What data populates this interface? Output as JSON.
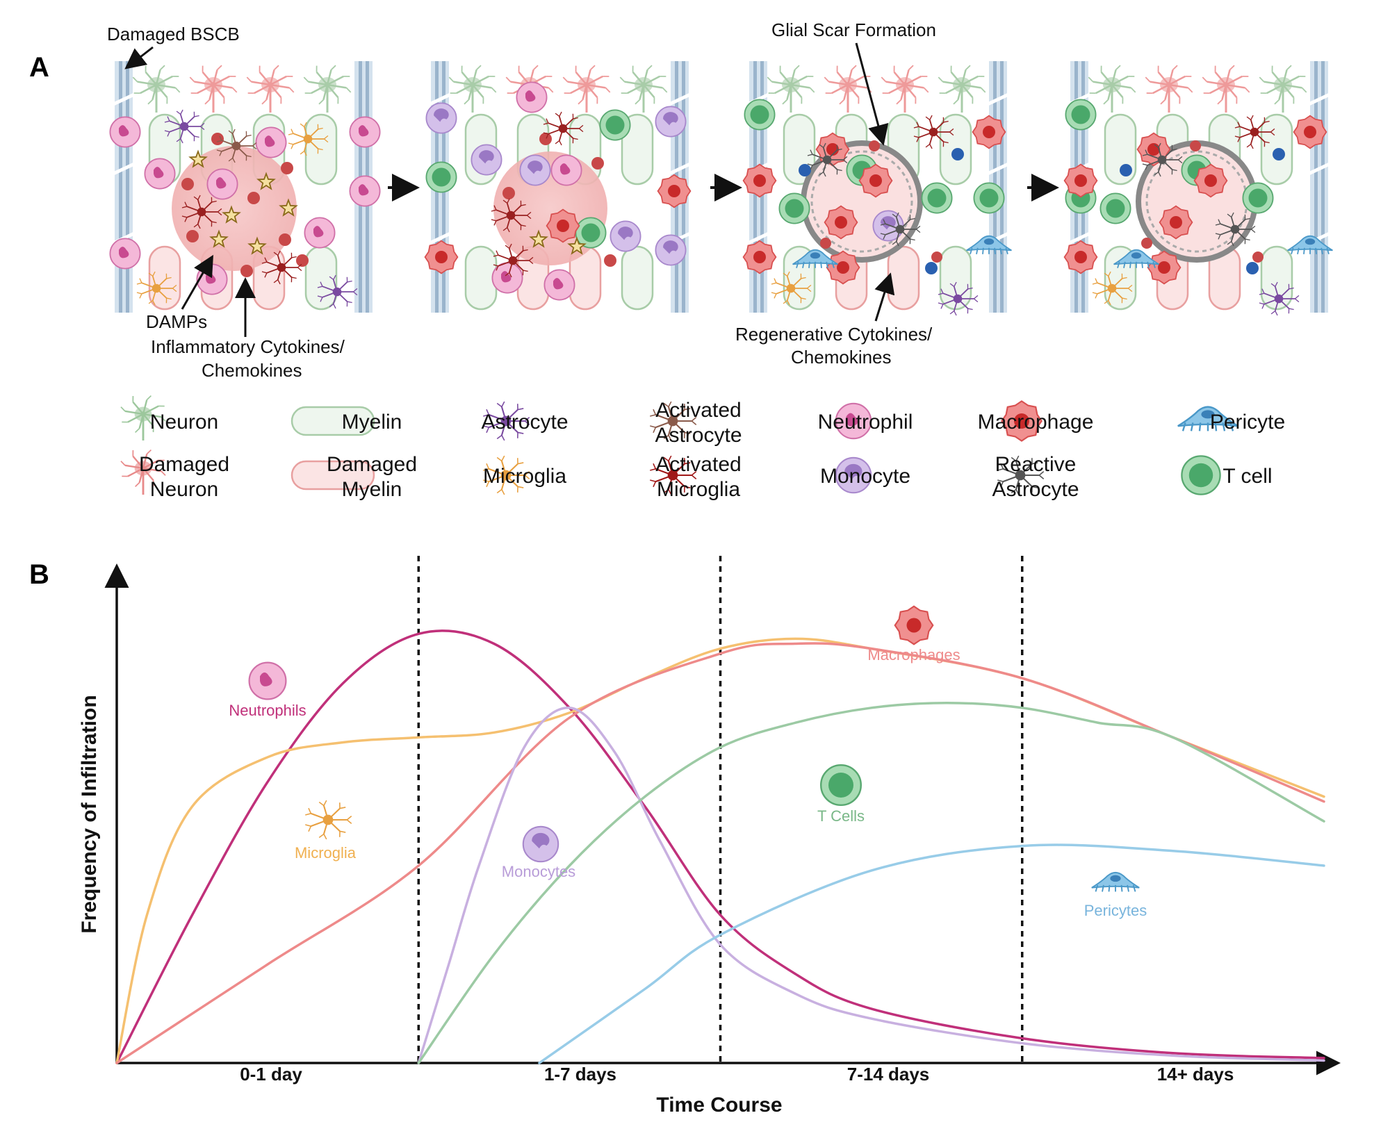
{
  "panel_a": {
    "letter": "A",
    "annotations": {
      "damaged_bscb": "Damaged BSCB",
      "glial_scar": "Glial Scar Formation",
      "damps": "DAMPs",
      "inflammatory_line1": "Inflammatory Cytokines/",
      "inflammatory_line2": "Chemokines",
      "regenerative_line1": "Regenerative Cytokines/",
      "regenerative_line2": "Chemokines"
    },
    "legend": [
      {
        "key": "neuron",
        "line1": "Neuron",
        "line2": "",
        "color": "#9cc79c"
      },
      {
        "key": "myelin",
        "line1": "Myelin",
        "line2": "",
        "color": "#9cc79c"
      },
      {
        "key": "astrocyte",
        "line1": "Astrocyte",
        "line2": "",
        "color": "#7a4aa0"
      },
      {
        "key": "activated-astrocyte",
        "line1": "Activated",
        "line2": "Astrocyte",
        "color": "#8a5a4a"
      },
      {
        "key": "neutrophil",
        "line1": "Neutrophil",
        "line2": "",
        "color": "#d060a0"
      },
      {
        "key": "macrophage",
        "line1": "Macrophage",
        "line2": "",
        "color": "#e04040"
      },
      {
        "key": "pericyte",
        "line1": "Pericyte",
        "line2": "",
        "color": "#5aaad8"
      },
      {
        "key": "damaged-neuron",
        "line1": "Damaged",
        "line2": "Neuron",
        "color": "#e88a8a"
      },
      {
        "key": "damaged-myelin",
        "line1": "Damaged",
        "line2": "Myelin",
        "color": "#e88a8a"
      },
      {
        "key": "microglia",
        "line1": "Microglia",
        "line2": "",
        "color": "#e8a040"
      },
      {
        "key": "activated-microglia",
        "line1": "Activated",
        "line2": "Microglia",
        "color": "#a01818"
      },
      {
        "key": "monocyte",
        "line1": "Monocyte",
        "line2": "",
        "color": "#a080cc"
      },
      {
        "key": "reactive-astrocyte",
        "line1": "Reactive",
        "line2": "Astrocyte",
        "color": "#555555"
      },
      {
        "key": "t-cell",
        "line1": "T cell",
        "line2": "",
        "color": "#4aa86a"
      }
    ]
  },
  "chart_data": {
    "type": "line",
    "letter": "B",
    "xlabel": "Time Course",
    "ylabel": "Frequency of Infiltration",
    "categories": [
      "0-1 day",
      "1-7 days",
      "7-14 days",
      "14+ days"
    ],
    "xlim": [
      0,
      4
    ],
    "ylim": [
      0,
      1
    ],
    "series": [
      {
        "name": "Neutrophils",
        "color": "#c0307a",
        "icon": "neutrophil",
        "points": [
          [
            0,
            0
          ],
          [
            0.25,
            0.3
          ],
          [
            0.5,
            0.57
          ],
          [
            0.75,
            0.77
          ],
          [
            1,
            0.87
          ],
          [
            1.25,
            0.85
          ],
          [
            1.5,
            0.72
          ],
          [
            1.75,
            0.52
          ],
          [
            2,
            0.3
          ],
          [
            2.25,
            0.18
          ],
          [
            2.5,
            0.11
          ],
          [
            3,
            0.05
          ],
          [
            3.5,
            0.02
          ],
          [
            4,
            0.01
          ]
        ]
      },
      {
        "name": "Microglia",
        "color": "#f5c070",
        "icon": "microglia",
        "points": [
          [
            0,
            0
          ],
          [
            0.1,
            0.3
          ],
          [
            0.25,
            0.52
          ],
          [
            0.5,
            0.62
          ],
          [
            0.75,
            0.65
          ],
          [
            1,
            0.66
          ],
          [
            1.25,
            0.67
          ],
          [
            1.5,
            0.71
          ],
          [
            1.75,
            0.78
          ],
          [
            2,
            0.84
          ],
          [
            2.25,
            0.86
          ],
          [
            2.5,
            0.84
          ],
          [
            3,
            0.78
          ],
          [
            3.5,
            0.66
          ],
          [
            4,
            0.54
          ]
        ]
      },
      {
        "name": "Macrophages",
        "color": "#ee8a8a",
        "icon": "macrophage",
        "points": [
          [
            0,
            0
          ],
          [
            0.5,
            0.2
          ],
          [
            1,
            0.4
          ],
          [
            1.5,
            0.7
          ],
          [
            2,
            0.83
          ],
          [
            2.25,
            0.85
          ],
          [
            2.5,
            0.84
          ],
          [
            3,
            0.78
          ],
          [
            3.5,
            0.66
          ],
          [
            4,
            0.53
          ]
        ]
      },
      {
        "name": "Monocytes",
        "color": "#c8b0e0",
        "icon": "monocyte",
        "points": [
          [
            1,
            0
          ],
          [
            1.1,
            0.2
          ],
          [
            1.2,
            0.4
          ],
          [
            1.35,
            0.64
          ],
          [
            1.5,
            0.72
          ],
          [
            1.65,
            0.63
          ],
          [
            1.8,
            0.45
          ],
          [
            2,
            0.24
          ],
          [
            2.25,
            0.14
          ],
          [
            2.5,
            0.09
          ],
          [
            3,
            0.04
          ],
          [
            3.5,
            0.015
          ],
          [
            4,
            0.005
          ]
        ]
      },
      {
        "name": "T Cells",
        "color": "#9ccaa4",
        "icon": "t-cell",
        "points": [
          [
            1,
            0
          ],
          [
            1.25,
            0.22
          ],
          [
            1.5,
            0.4
          ],
          [
            1.75,
            0.54
          ],
          [
            2,
            0.64
          ],
          [
            2.25,
            0.69
          ],
          [
            2.5,
            0.72
          ],
          [
            2.75,
            0.73
          ],
          [
            3,
            0.72
          ],
          [
            3.25,
            0.69
          ],
          [
            3.5,
            0.66
          ],
          [
            4,
            0.49
          ]
        ]
      },
      {
        "name": "Pericytes",
        "color": "#98cce8",
        "icon": "pericyte",
        "points": [
          [
            1.4,
            0
          ],
          [
            1.75,
            0.15
          ],
          [
            2,
            0.26
          ],
          [
            2.5,
            0.39
          ],
          [
            3,
            0.44
          ],
          [
            3.5,
            0.43
          ],
          [
            4,
            0.4
          ]
        ]
      }
    ],
    "phase_dividers": [
      1,
      2,
      3
    ]
  }
}
